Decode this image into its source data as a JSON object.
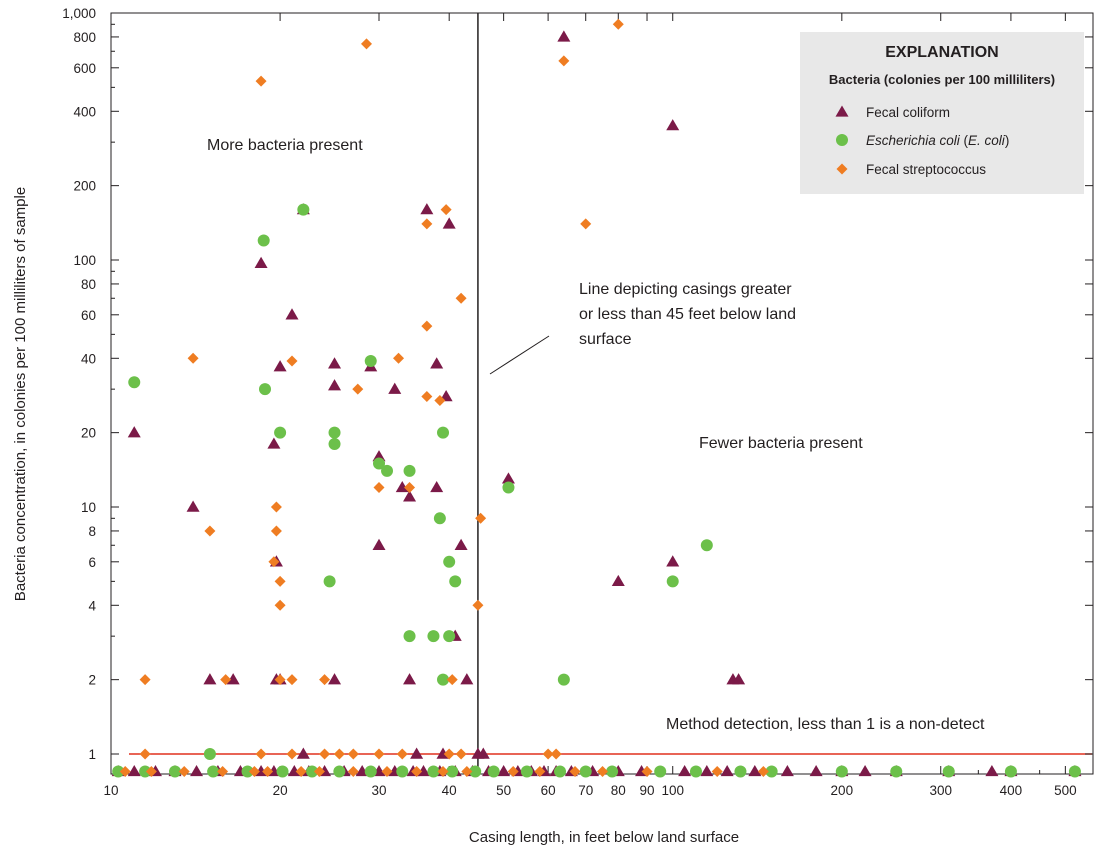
{
  "chart_data": {
    "type": "scatter",
    "title": "",
    "xlabel": "Casing length, in feet below land surface",
    "ylabel": "Bacteria concentration, in colonies per 100 milliliters of sample",
    "xscale": "log",
    "yscale": "log",
    "xlim": [
      10,
      560
    ],
    "ylim": [
      0.83,
      1000
    ],
    "x_ticks": [
      "10",
      "20",
      "30",
      "40",
      "50",
      "60",
      "70",
      "80",
      "90",
      "100",
      "200",
      "300",
      "400",
      "500"
    ],
    "y_ticks": [
      "1",
      "2",
      "4",
      "6",
      "8",
      "10",
      "20",
      "40",
      "60",
      "80",
      "100",
      "200",
      "400",
      "600",
      "800",
      "1,000"
    ],
    "grid": false,
    "legend_position": "top-right",
    "legend": {
      "title": "EXPLANATION",
      "subtitle": "Bacteria (colonies per 100 milliliters)",
      "items": [
        {
          "label": "Fecal coliform"
        },
        {
          "label_italic": "Escherichia coli",
          "label_plain_open": " (",
          "label_italic2": "E. coli",
          "label_plain_close": ")"
        },
        {
          "label": "Fecal streptococcus"
        }
      ]
    },
    "annotations": {
      "more": "More bacteria present",
      "fewer": "Fewer bacteria present",
      "casing_line_1": "Line depicting casings greater",
      "casing_line_2": "or less than 45 feet below land",
      "casing_line_3": "surface",
      "detection": "Method detection, less than 1 is a non-detect"
    },
    "reference_lines": {
      "casing_vertical_x": 45,
      "detection_horizontal_y": 1
    },
    "non_detect_plotted_at": 0.85,
    "series": [
      {
        "name": "Fecal coliform",
        "color": "#7b1a48",
        "marker": "triangle",
        "points": [
          [
            11,
            20
          ],
          [
            14,
            10
          ],
          [
            15,
            2
          ],
          [
            16.5,
            2
          ],
          [
            18.5,
            97
          ],
          [
            19.5,
            18
          ],
          [
            19.7,
            6
          ],
          [
            19.7,
            2
          ],
          [
            20,
            37
          ],
          [
            20,
            2
          ],
          [
            21,
            60
          ],
          [
            22,
            160
          ],
          [
            22,
            1
          ],
          [
            25,
            38
          ],
          [
            25,
            31
          ],
          [
            25,
            2
          ],
          [
            29,
            37
          ],
          [
            30,
            16
          ],
          [
            30,
            7
          ],
          [
            32,
            30
          ],
          [
            33,
            12
          ],
          [
            34,
            11
          ],
          [
            34,
            2
          ],
          [
            35,
            1
          ],
          [
            36.5,
            160
          ],
          [
            38,
            38
          ],
          [
            38,
            12
          ],
          [
            39,
            1
          ],
          [
            39.5,
            28
          ],
          [
            40,
            140
          ],
          [
            41,
            3
          ],
          [
            42,
            7
          ],
          [
            43,
            2
          ],
          [
            45,
            1
          ],
          [
            46,
            1
          ],
          [
            51,
            13
          ],
          [
            64,
            800
          ],
          [
            80,
            5
          ],
          [
            100,
            350
          ],
          [
            100,
            6
          ],
          [
            128,
            2
          ],
          [
            131,
            2
          ],
          [
            10.3,
            0.85
          ],
          [
            11,
            0.85
          ],
          [
            12,
            0.85
          ],
          [
            13,
            0.85
          ],
          [
            14.2,
            0.85
          ],
          [
            15.5,
            0.85
          ],
          [
            17,
            0.85
          ],
          [
            18.5,
            0.85
          ],
          [
            19.5,
            0.85
          ],
          [
            21.2,
            0.85
          ],
          [
            22.5,
            0.85
          ],
          [
            24,
            0.85
          ],
          [
            26,
            0.85
          ],
          [
            28,
            0.85
          ],
          [
            30,
            0.85
          ],
          [
            32,
            0.85
          ],
          [
            34.5,
            0.85
          ],
          [
            36,
            0.85
          ],
          [
            38.5,
            0.85
          ],
          [
            41,
            0.85
          ],
          [
            44,
            0.85
          ],
          [
            47,
            0.85
          ],
          [
            50,
            0.85
          ],
          [
            53,
            0.85
          ],
          [
            56,
            0.85
          ],
          [
            59,
            0.85
          ],
          [
            62,
            0.85
          ],
          [
            66,
            0.85
          ],
          [
            72,
            0.85
          ],
          [
            80,
            0.85
          ],
          [
            88,
            0.85
          ],
          [
            105,
            0.85
          ],
          [
            115,
            0.85
          ],
          [
            125,
            0.85
          ],
          [
            140,
            0.85
          ],
          [
            160,
            0.85
          ],
          [
            180,
            0.85
          ],
          [
            200,
            0.85
          ],
          [
            220,
            0.85
          ],
          [
            250,
            0.85
          ],
          [
            310,
            0.85
          ],
          [
            370,
            0.85
          ],
          [
            400,
            0.85
          ],
          [
            520,
            0.85
          ]
        ]
      },
      {
        "name": "Escherichia coli (E. coli)",
        "color": "#6cc04a",
        "marker": "circle",
        "points": [
          [
            11,
            32
          ],
          [
            15,
            1
          ],
          [
            18.7,
            120
          ],
          [
            18.8,
            30
          ],
          [
            20,
            20
          ],
          [
            22,
            160
          ],
          [
            24.5,
            5
          ],
          [
            25,
            20
          ],
          [
            25,
            18
          ],
          [
            29,
            39
          ],
          [
            30,
            15
          ],
          [
            31,
            14
          ],
          [
            34,
            14
          ],
          [
            34,
            3
          ],
          [
            37.5,
            3
          ],
          [
            38.5,
            9
          ],
          [
            39,
            20
          ],
          [
            39,
            2
          ],
          [
            40,
            6
          ],
          [
            40,
            3
          ],
          [
            41,
            5
          ],
          [
            51,
            12
          ],
          [
            64,
            2
          ],
          [
            100,
            5
          ],
          [
            115,
            7
          ],
          [
            10.3,
            0.85
          ],
          [
            11.5,
            0.85
          ],
          [
            13,
            0.85
          ],
          [
            15.2,
            0.85
          ],
          [
            17.5,
            0.85
          ],
          [
            20.2,
            0.85
          ],
          [
            22.8,
            0.85
          ],
          [
            25.5,
            0.85
          ],
          [
            29,
            0.85
          ],
          [
            33,
            0.85
          ],
          [
            37.5,
            0.85
          ],
          [
            40.5,
            0.85
          ],
          [
            44.5,
            0.85
          ],
          [
            48,
            0.85
          ],
          [
            55,
            0.85
          ],
          [
            63,
            0.85
          ],
          [
            70,
            0.85
          ],
          [
            78,
            0.85
          ],
          [
            95,
            0.85
          ],
          [
            110,
            0.85
          ],
          [
            132,
            0.85
          ],
          [
            150,
            0.85
          ],
          [
            200,
            0.85
          ],
          [
            250,
            0.85
          ],
          [
            310,
            0.85
          ],
          [
            400,
            0.85
          ],
          [
            520,
            0.85
          ]
        ]
      },
      {
        "name": "Fecal streptococcus",
        "color": "#ef7d22",
        "marker": "diamond",
        "points": [
          [
            11.5,
            2
          ],
          [
            11.5,
            1
          ],
          [
            14,
            40
          ],
          [
            15,
            8
          ],
          [
            16,
            2
          ],
          [
            18.5,
            530
          ],
          [
            18.5,
            1
          ],
          [
            19.5,
            6
          ],
          [
            19.7,
            10
          ],
          [
            19.7,
            8
          ],
          [
            20,
            5
          ],
          [
            20,
            4
          ],
          [
            20,
            2
          ],
          [
            21,
            39
          ],
          [
            21,
            2
          ],
          [
            21,
            1
          ],
          [
            24,
            2
          ],
          [
            24,
            1
          ],
          [
            25.5,
            1
          ],
          [
            27,
            1
          ],
          [
            27.5,
            30
          ],
          [
            28.5,
            750
          ],
          [
            30,
            12
          ],
          [
            30,
            1
          ],
          [
            32.5,
            40
          ],
          [
            33,
            1
          ],
          [
            34,
            12
          ],
          [
            36.5,
            140
          ],
          [
            36.5,
            54
          ],
          [
            36.5,
            28
          ],
          [
            38.5,
            27
          ],
          [
            39.5,
            160
          ],
          [
            40,
            1
          ],
          [
            40.5,
            2
          ],
          [
            42,
            70
          ],
          [
            42,
            1
          ],
          [
            45,
            4
          ],
          [
            45.5,
            9
          ],
          [
            60,
            1
          ],
          [
            62,
            1
          ],
          [
            64,
            640
          ],
          [
            70,
            140
          ],
          [
            80,
            900
          ],
          [
            10.6,
            0.85
          ],
          [
            11.8,
            0.85
          ],
          [
            13.5,
            0.85
          ],
          [
            15.8,
            0.85
          ],
          [
            18,
            0.85
          ],
          [
            19,
            0.85
          ],
          [
            21.8,
            0.85
          ],
          [
            23.5,
            0.85
          ],
          [
            27,
            0.85
          ],
          [
            31,
            0.85
          ],
          [
            35,
            0.85
          ],
          [
            39,
            0.85
          ],
          [
            43,
            0.85
          ],
          [
            52,
            0.85
          ],
          [
            58,
            0.85
          ],
          [
            67,
            0.85
          ],
          [
            75,
            0.85
          ],
          [
            90,
            0.85
          ],
          [
            120,
            0.85
          ],
          [
            145,
            0.85
          ]
        ]
      }
    ]
  }
}
